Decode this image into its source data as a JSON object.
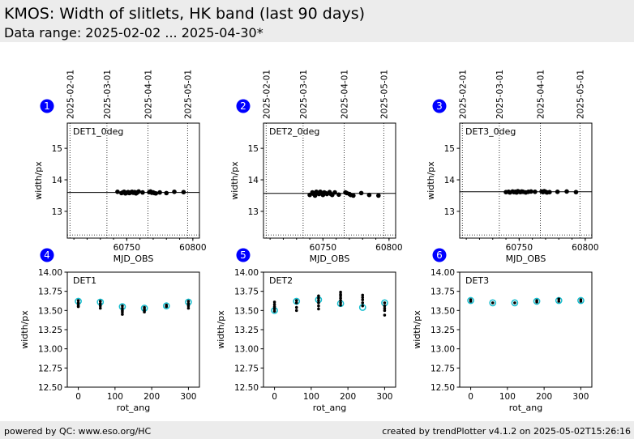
{
  "header": {
    "title": "KMOS: Width of slitlets, HK band (last 90 days)",
    "subtitle": "Data range: 2025-02-02 ... 2025-04-30*"
  },
  "footer": {
    "left": "powered by QC: www.eso.org/HC",
    "right": "created by trendPlotter v4.1.2 on 2025-05-02T15:26:16"
  },
  "colors": {
    "points": "#000000",
    "mean_marker": "#17becf",
    "badge": "#0000ff",
    "badge_text": "#ffffff"
  },
  "chart_data": [
    {
      "type": "scatter",
      "panel": "1",
      "label": "DET1_0deg",
      "xlabel": "MJD_OBS",
      "ylabel": "width/px",
      "xlim": [
        60705,
        60805
      ],
      "ylim": [
        12.15,
        15.8
      ],
      "xticks": [
        60750,
        60800
      ],
      "yticks": [
        13,
        14,
        15
      ],
      "date_ticks": [
        {
          "label": "2025-02-01",
          "x": 60707
        },
        {
          "label": "2025-03-01",
          "x": 60735
        },
        {
          "label": "2025-04-01",
          "x": 60766
        },
        {
          "label": "2025-05-01",
          "x": 60796
        }
      ],
      "reference": 13.6,
      "lower_limit": 12.25,
      "x": [
        60743,
        60746,
        60747,
        60748,
        60749,
        60750,
        60751,
        60752,
        60753,
        60754,
        60755,
        60756,
        60757,
        60758,
        60759,
        60762,
        60767,
        60768,
        60769,
        60770,
        60771,
        60772,
        60775,
        60780,
        60786,
        60793
      ],
      "y": [
        13.62,
        13.58,
        13.6,
        13.62,
        13.57,
        13.59,
        13.61,
        13.58,
        13.6,
        13.62,
        13.59,
        13.61,
        13.57,
        13.6,
        13.63,
        13.6,
        13.61,
        13.63,
        13.59,
        13.6,
        13.58,
        13.57,
        13.6,
        13.58,
        13.62,
        13.61
      ]
    },
    {
      "type": "scatter",
      "panel": "2",
      "label": "DET2_0deg",
      "xlabel": "MJD_OBS",
      "ylabel": "width/px",
      "xlim": [
        60705,
        60805
      ],
      "ylim": [
        12.15,
        15.8
      ],
      "xticks": [
        60750,
        60800
      ],
      "yticks": [
        13,
        14,
        15
      ],
      "date_ticks": [
        {
          "label": "2025-02-01",
          "x": 60707
        },
        {
          "label": "2025-03-01",
          "x": 60735
        },
        {
          "label": "2025-04-01",
          "x": 60766
        },
        {
          "label": "2025-05-01",
          "x": 60796
        }
      ],
      "reference": 13.57,
      "lower_limit": 12.25,
      "x": [
        60740,
        60742,
        60743,
        60744,
        60745,
        60746,
        60747,
        60748,
        60749,
        60750,
        60751,
        60752,
        60753,
        60755,
        60756,
        60757,
        60759,
        60762,
        60767,
        60768,
        60770,
        60771,
        60773,
        60779,
        60785,
        60792
      ],
      "y": [
        13.52,
        13.6,
        13.55,
        13.5,
        13.62,
        13.58,
        13.55,
        13.62,
        13.57,
        13.52,
        13.6,
        13.58,
        13.55,
        13.61,
        13.55,
        13.52,
        13.6,
        13.53,
        13.6,
        13.58,
        13.55,
        13.52,
        13.5,
        13.58,
        13.52,
        13.5
      ]
    },
    {
      "type": "scatter",
      "panel": "3",
      "label": "DET3_0deg",
      "xlabel": "MJD_OBS",
      "ylabel": "width/px",
      "xlim": [
        60705,
        60805
      ],
      "ylim": [
        12.15,
        15.8
      ],
      "xticks": [
        60750,
        60800
      ],
      "yticks": [
        13,
        14,
        15
      ],
      "date_ticks": [
        {
          "label": "2025-02-01",
          "x": 60707
        },
        {
          "label": "2025-03-01",
          "x": 60735
        },
        {
          "label": "2025-04-01",
          "x": 60766
        },
        {
          "label": "2025-05-01",
          "x": 60796
        }
      ],
      "reference": 13.62,
      "lower_limit": 12.25,
      "x": [
        60740,
        60742,
        60743,
        60745,
        60746,
        60747,
        60748,
        60749,
        60750,
        60751,
        60752,
        60753,
        60755,
        60757,
        60759,
        60762,
        60767,
        60768,
        60769,
        60770,
        60771,
        60773,
        60779,
        60786,
        60793
      ],
      "y": [
        13.61,
        13.62,
        13.6,
        13.63,
        13.61,
        13.62,
        13.6,
        13.64,
        13.62,
        13.61,
        13.63,
        13.62,
        13.6,
        13.62,
        13.63,
        13.62,
        13.63,
        13.61,
        13.64,
        13.62,
        13.6,
        13.61,
        13.62,
        13.63,
        13.61
      ]
    },
    {
      "type": "scatter",
      "panel": "4",
      "label": "DET1",
      "xlabel": "rot_ang",
      "ylabel": "width/px",
      "xlim": [
        -30,
        330
      ],
      "ylim": [
        12.5,
        14.0
      ],
      "xticks": [
        0,
        100,
        200,
        300
      ],
      "yticks": [
        12.5,
        12.75,
        13.0,
        13.25,
        13.5,
        13.75,
        14.0
      ],
      "x": [
        0,
        0,
        0,
        0,
        60,
        60,
        60,
        60,
        120,
        120,
        120,
        120,
        120,
        180,
        180,
        180,
        180,
        240,
        240,
        300,
        300,
        300,
        300
      ],
      "y": [
        13.63,
        13.6,
        13.57,
        13.55,
        13.62,
        13.59,
        13.56,
        13.53,
        13.56,
        13.53,
        13.5,
        13.48,
        13.45,
        13.54,
        13.52,
        13.5,
        13.48,
        13.57,
        13.55,
        13.62,
        13.59,
        13.56,
        13.53
      ],
      "means": [
        {
          "x": 0,
          "y": 13.62
        },
        {
          "x": 60,
          "y": 13.61
        },
        {
          "x": 120,
          "y": 13.55
        },
        {
          "x": 180,
          "y": 13.53
        },
        {
          "x": 240,
          "y": 13.56
        },
        {
          "x": 300,
          "y": 13.61
        }
      ]
    },
    {
      "type": "scatter",
      "panel": "5",
      "label": "DET2",
      "xlabel": "rot_ang",
      "ylabel": "width/px",
      "xlim": [
        -30,
        330
      ],
      "ylim": [
        12.5,
        14.0
      ],
      "xticks": [
        0,
        100,
        200,
        300
      ],
      "yticks": [
        12.5,
        12.75,
        13.0,
        13.25,
        13.5,
        13.75,
        14.0
      ],
      "x": [
        0,
        0,
        0,
        0,
        0,
        60,
        60,
        60,
        60,
        120,
        120,
        120,
        120,
        120,
        120,
        180,
        180,
        180,
        180,
        180,
        180,
        180,
        240,
        240,
        240,
        240,
        240,
        300,
        300,
        300,
        300,
        300
      ],
      "y": [
        13.61,
        13.58,
        13.55,
        13.52,
        13.49,
        13.63,
        13.6,
        13.54,
        13.5,
        13.69,
        13.66,
        13.63,
        13.6,
        13.56,
        13.52,
        13.74,
        13.71,
        13.69,
        13.66,
        13.63,
        13.6,
        13.57,
        13.7,
        13.67,
        13.64,
        13.6,
        13.56,
        13.6,
        13.56,
        13.53,
        13.5,
        13.44
      ],
      "means": [
        {
          "x": 0,
          "y": 13.5
        },
        {
          "x": 60,
          "y": 13.62
        },
        {
          "x": 120,
          "y": 13.64
        },
        {
          "x": 180,
          "y": 13.59
        },
        {
          "x": 240,
          "y": 13.54
        },
        {
          "x": 300,
          "y": 13.6
        }
      ]
    },
    {
      "type": "scatter",
      "panel": "6",
      "label": "DET3",
      "xlabel": "rot_ang",
      "ylabel": "width/px",
      "xlim": [
        -30,
        330
      ],
      "ylim": [
        12.5,
        14.0
      ],
      "xticks": [
        0,
        100,
        200,
        300
      ],
      "yticks": [
        12.5,
        12.75,
        13.0,
        13.25,
        13.5,
        13.75,
        14.0
      ],
      "x": [
        0,
        0,
        60,
        120,
        180,
        180,
        240,
        240,
        300,
        300
      ],
      "y": [
        13.64,
        13.62,
        13.6,
        13.6,
        13.63,
        13.61,
        13.65,
        13.62,
        13.64,
        13.62
      ],
      "means": [
        {
          "x": 0,
          "y": 13.63
        },
        {
          "x": 60,
          "y": 13.6
        },
        {
          "x": 120,
          "y": 13.6
        },
        {
          "x": 180,
          "y": 13.62
        },
        {
          "x": 240,
          "y": 13.63
        },
        {
          "x": 300,
          "y": 13.63
        }
      ]
    }
  ]
}
